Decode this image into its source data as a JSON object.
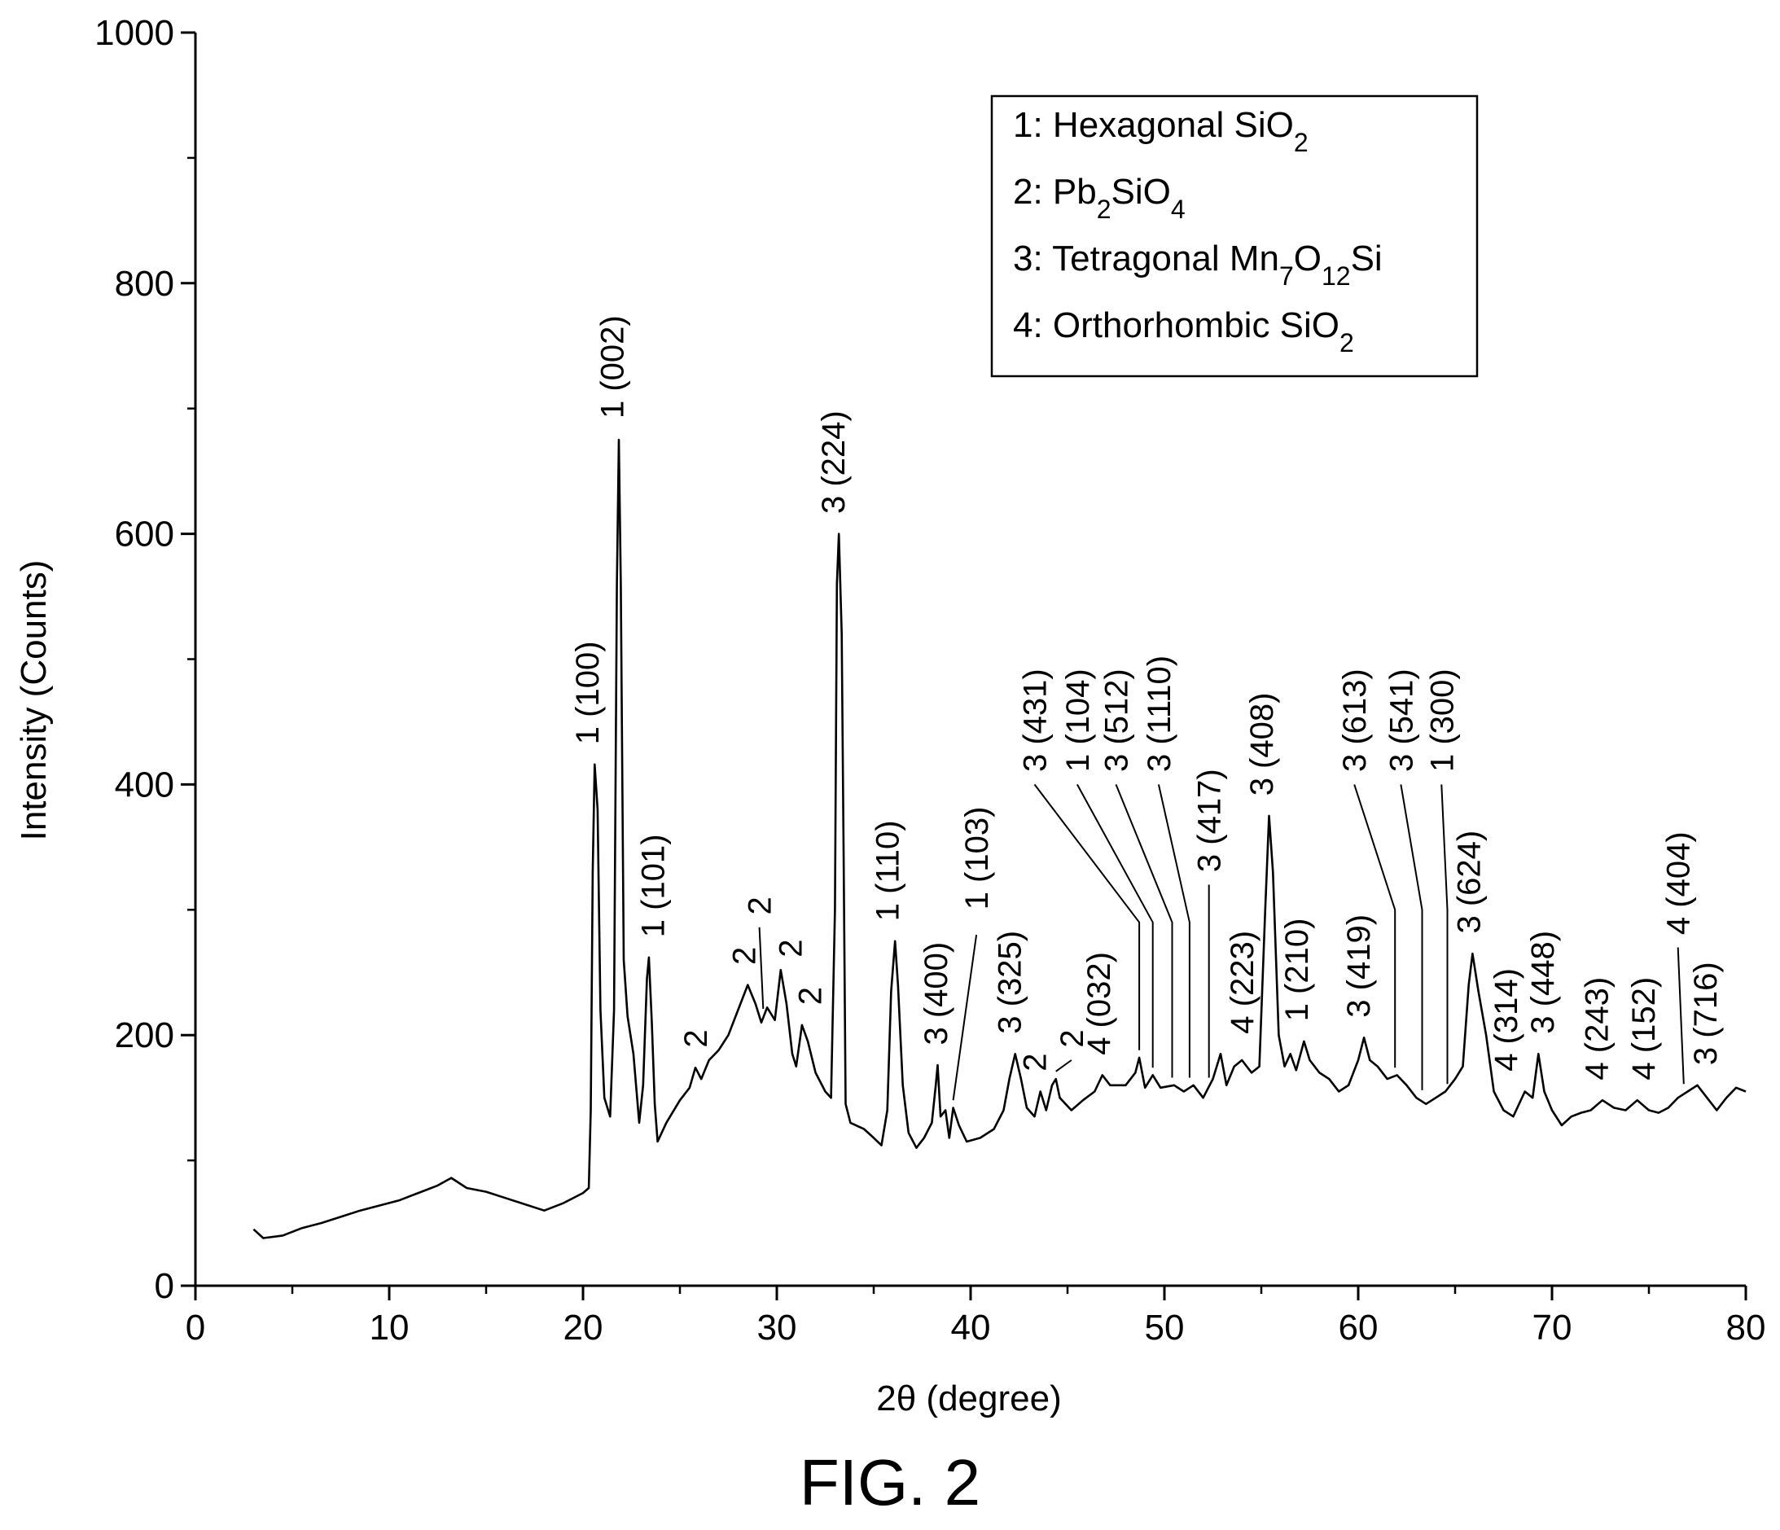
{
  "figure": {
    "caption": "FIG. 2"
  },
  "legend": {
    "entries": [
      {
        "prefix": "1: Hexagonal SiO",
        "sub": "2",
        "suffix": ""
      },
      {
        "prefix": "2: Pb",
        "sub": "2",
        "mid": "SiO",
        "sub2": "4",
        "suffix": ""
      },
      {
        "prefix": "3: Tetragonal Mn",
        "sub": "7",
        "mid": "O",
        "sub2": "12",
        "suffix": "Si"
      },
      {
        "prefix": "4: Orthorhombic SiO",
        "sub": "2",
        "suffix": ""
      }
    ]
  },
  "chart_data": {
    "type": "line",
    "title": "",
    "xlabel": "2θ (degree)",
    "ylabel": "Intensity (Counts)",
    "xlim": [
      0,
      80
    ],
    "ylim": [
      0,
      1000
    ],
    "xticks": [
      0,
      10,
      20,
      30,
      40,
      50,
      60,
      70,
      80
    ],
    "yticks": [
      0,
      200,
      400,
      600,
      800,
      1000
    ],
    "grid": false,
    "legend_position": "top-right",
    "series": [
      {
        "points": [
          [
            3.0,
            45
          ],
          [
            3.5,
            38
          ],
          [
            4.5,
            40
          ],
          [
            5.5,
            46
          ],
          [
            6.5,
            50
          ],
          [
            7.5,
            55
          ],
          [
            8.5,
            60
          ],
          [
            9.5,
            64
          ],
          [
            10.5,
            68
          ],
          [
            11.5,
            74
          ],
          [
            12.5,
            80
          ],
          [
            13.2,
            86
          ],
          [
            14.0,
            78
          ],
          [
            15.0,
            75
          ],
          [
            16.0,
            70
          ],
          [
            17.0,
            65
          ],
          [
            18.0,
            60
          ],
          [
            19.0,
            66
          ],
          [
            20.0,
            74
          ],
          [
            20.3,
            78
          ],
          [
            20.4,
            140
          ],
          [
            20.5,
            330
          ],
          [
            20.6,
            416
          ],
          [
            20.75,
            380
          ],
          [
            20.9,
            220
          ],
          [
            21.1,
            150
          ],
          [
            21.4,
            135
          ],
          [
            21.6,
            220
          ],
          [
            21.75,
            560
          ],
          [
            21.85,
            675
          ],
          [
            21.95,
            560
          ],
          [
            22.1,
            260
          ],
          [
            22.3,
            215
          ],
          [
            22.6,
            185
          ],
          [
            22.9,
            130
          ],
          [
            23.1,
            160
          ],
          [
            23.3,
            245
          ],
          [
            23.4,
            262
          ],
          [
            23.55,
            210
          ],
          [
            23.7,
            145
          ],
          [
            23.85,
            115
          ],
          [
            24.3,
            130
          ],
          [
            25.0,
            148
          ],
          [
            25.5,
            158
          ],
          [
            25.8,
            174
          ],
          [
            26.1,
            165
          ],
          [
            26.5,
            180
          ],
          [
            27.0,
            188
          ],
          [
            27.5,
            200
          ],
          [
            28.0,
            220
          ],
          [
            28.5,
            240
          ],
          [
            28.9,
            225
          ],
          [
            29.2,
            210
          ],
          [
            29.5,
            222
          ],
          [
            29.9,
            212
          ],
          [
            30.2,
            252
          ],
          [
            30.5,
            225
          ],
          [
            30.8,
            185
          ],
          [
            31.0,
            175
          ],
          [
            31.3,
            208
          ],
          [
            31.6,
            195
          ],
          [
            32.0,
            170
          ],
          [
            32.5,
            155
          ],
          [
            32.8,
            150
          ],
          [
            33.0,
            300
          ],
          [
            33.1,
            560
          ],
          [
            33.2,
            600
          ],
          [
            33.35,
            520
          ],
          [
            33.45,
            340
          ],
          [
            33.55,
            145
          ],
          [
            33.8,
            130
          ],
          [
            34.5,
            125
          ],
          [
            35.0,
            118
          ],
          [
            35.4,
            112
          ],
          [
            35.7,
            140
          ],
          [
            35.9,
            235
          ],
          [
            36.1,
            275
          ],
          [
            36.25,
            240
          ],
          [
            36.5,
            160
          ],
          [
            36.8,
            122
          ],
          [
            37.2,
            110
          ],
          [
            37.6,
            118
          ],
          [
            38.0,
            130
          ],
          [
            38.2,
            160
          ],
          [
            38.3,
            176
          ],
          [
            38.45,
            135
          ],
          [
            38.7,
            140
          ],
          [
            38.9,
            118
          ],
          [
            39.1,
            142
          ],
          [
            39.4,
            128
          ],
          [
            39.8,
            115
          ],
          [
            40.5,
            118
          ],
          [
            41.2,
            125
          ],
          [
            41.7,
            140
          ],
          [
            42.0,
            165
          ],
          [
            42.3,
            185
          ],
          [
            42.6,
            165
          ],
          [
            42.9,
            142
          ],
          [
            43.3,
            135
          ],
          [
            43.6,
            155
          ],
          [
            43.9,
            140
          ],
          [
            44.2,
            160
          ],
          [
            44.4,
            165
          ],
          [
            44.6,
            150
          ],
          [
            45.2,
            140
          ],
          [
            45.8,
            148
          ],
          [
            46.4,
            155
          ],
          [
            46.8,
            168
          ],
          [
            47.2,
            160
          ],
          [
            48.0,
            160
          ],
          [
            48.5,
            170
          ],
          [
            48.7,
            182
          ],
          [
            49.0,
            158
          ],
          [
            49.4,
            168
          ],
          [
            49.8,
            158
          ],
          [
            50.5,
            160
          ],
          [
            51.0,
            155
          ],
          [
            51.5,
            160
          ],
          [
            52.0,
            150
          ],
          [
            52.5,
            165
          ],
          [
            52.9,
            185
          ],
          [
            53.2,
            160
          ],
          [
            53.6,
            175
          ],
          [
            54.0,
            180
          ],
          [
            54.5,
            170
          ],
          [
            54.9,
            175
          ],
          [
            55.2,
            300
          ],
          [
            55.4,
            375
          ],
          [
            55.6,
            330
          ],
          [
            55.9,
            200
          ],
          [
            56.2,
            175
          ],
          [
            56.5,
            185
          ],
          [
            56.8,
            172
          ],
          [
            57.2,
            195
          ],
          [
            57.5,
            180
          ],
          [
            58.0,
            170
          ],
          [
            58.5,
            165
          ],
          [
            59.0,
            155
          ],
          [
            59.5,
            160
          ],
          [
            60.0,
            180
          ],
          [
            60.3,
            198
          ],
          [
            60.6,
            180
          ],
          [
            61.0,
            175
          ],
          [
            61.5,
            165
          ],
          [
            62.0,
            168
          ],
          [
            62.5,
            160
          ],
          [
            63.0,
            150
          ],
          [
            63.5,
            145
          ],
          [
            64.0,
            150
          ],
          [
            64.5,
            155
          ],
          [
            65.0,
            165
          ],
          [
            65.4,
            175
          ],
          [
            65.7,
            240
          ],
          [
            65.9,
            265
          ],
          [
            66.2,
            235
          ],
          [
            66.6,
            200
          ],
          [
            67.0,
            155
          ],
          [
            67.5,
            140
          ],
          [
            68.0,
            135
          ],
          [
            68.6,
            155
          ],
          [
            69.0,
            150
          ],
          [
            69.3,
            185
          ],
          [
            69.6,
            155
          ],
          [
            70.0,
            140
          ],
          [
            70.5,
            128
          ],
          [
            71.0,
            135
          ],
          [
            71.5,
            138
          ],
          [
            72.0,
            140
          ],
          [
            72.6,
            148
          ],
          [
            73.2,
            142
          ],
          [
            73.8,
            140
          ],
          [
            74.4,
            148
          ],
          [
            75.0,
            140
          ],
          [
            75.5,
            138
          ],
          [
            76.0,
            142
          ],
          [
            76.5,
            150
          ],
          [
            77.0,
            155
          ],
          [
            77.5,
            160
          ],
          [
            78.0,
            150
          ],
          [
            78.5,
            140
          ],
          [
            79.0,
            150
          ],
          [
            79.5,
            158
          ],
          [
            80.0,
            155
          ]
        ]
      }
    ],
    "peak_labels": [
      {
        "text": "1 (100)",
        "x": 20.6,
        "y": 416,
        "lx": 20.2,
        "ly": 432
      },
      {
        "text": "1 (002)",
        "x": 21.85,
        "y": 675,
        "lx": 21.5,
        "ly": 692
      },
      {
        "text": "1 (101)",
        "x": 23.4,
        "y": 262,
        "lx": 23.6,
        "ly": 278
      },
      {
        "text": "2",
        "x": 25.8,
        "y": 174,
        "lx": 25.8,
        "ly": 190
      },
      {
        "text": "2",
        "x": 28.5,
        "y": 240,
        "lx": 28.3,
        "ly": 256
      },
      {
        "text": "2",
        "x": 29.3,
        "y": 215,
        "lx": 29.1,
        "ly": 296,
        "leader": true,
        "lead_top": 286
      },
      {
        "text": "2",
        "x": 30.2,
        "y": 252,
        "lx": 30.7,
        "ly": 262
      },
      {
        "text": "2",
        "x": 31.3,
        "y": 208,
        "lx": 31.7,
        "ly": 224
      },
      {
        "text": "3 (224)",
        "x": 33.2,
        "y": 600,
        "lx": 32.9,
        "ly": 616
      },
      {
        "text": "1 (110)",
        "x": 36.1,
        "y": 275,
        "lx": 35.7,
        "ly": 291
      },
      {
        "text": "3 (400)",
        "x": 38.3,
        "y": 176,
        "lx": 38.2,
        "ly": 192
      },
      {
        "text": "1 (103)",
        "x": 39.1,
        "y": 142,
        "lx": 40.3,
        "ly": 300,
        "leader": true,
        "lead_top": 280
      },
      {
        "text": "3 (325)",
        "x": 42.3,
        "y": 185,
        "lx": 42.0,
        "ly": 201
      },
      {
        "text": "2",
        "x": 43.6,
        "y": 155,
        "lx": 43.3,
        "ly": 171
      },
      {
        "text": "2",
        "x": 44.4,
        "y": 165,
        "lx": 45.2,
        "ly": 190,
        "leader": true,
        "lead_top": 180
      },
      {
        "text": "4 (032)",
        "x": 46.8,
        "y": 168,
        "lx": 46.6,
        "ly": 184
      },
      {
        "text": "3 (431)",
        "x": 48.7,
        "y": 182,
        "lx": 43.3,
        "ly": 410,
        "leader": true,
        "lead_top": 400,
        "bend": 290
      },
      {
        "text": "1 (104)",
        "x": 49.4,
        "y": 168,
        "lx": 45.5,
        "ly": 410,
        "leader": true,
        "lead_top": 400,
        "bend": 290
      },
      {
        "text": "3 (512)",
        "x": 50.4,
        "y": 160,
        "lx": 47.5,
        "ly": 410,
        "leader": true,
        "lead_top": 400,
        "bend": 290
      },
      {
        "text": "3 (1110)",
        "x": 51.3,
        "y": 160,
        "lx": 49.7,
        "ly": 410,
        "leader": true,
        "lead_top": 400,
        "bend": 290
      },
      {
        "text": "3 (417)",
        "x": 52.3,
        "y": 160,
        "lx": 52.3,
        "ly": 330,
        "leader": true,
        "lead_top": 320
      },
      {
        "text": "4 (223)",
        "x": 52.9,
        "y": 185,
        "lx": 54.0,
        "ly": 201
      },
      {
        "text": "3 (408)",
        "x": 55.4,
        "y": 375,
        "lx": 55.0,
        "ly": 391
      },
      {
        "text": "1 (210)",
        "x": 57.2,
        "y": 195,
        "lx": 56.8,
        "ly": 211
      },
      {
        "text": "3 (419)",
        "x": 60.3,
        "y": 198,
        "lx": 60.0,
        "ly": 214
      },
      {
        "text": "3 (613)",
        "x": 61.9,
        "y": 168,
        "lx": 59.8,
        "ly": 410,
        "leader": true,
        "lead_top": 400,
        "bend": 300
      },
      {
        "text": "3 (541)",
        "x": 63.3,
        "y": 150,
        "lx": 62.2,
        "ly": 410,
        "leader": true,
        "lead_top": 400,
        "bend": 300
      },
      {
        "text": "1 (300)",
        "x": 64.6,
        "y": 155,
        "lx": 64.3,
        "ly": 410,
        "leader": true,
        "lead_top": 400,
        "bend": 300
      },
      {
        "text": "3 (624)",
        "x": 65.9,
        "y": 265,
        "lx": 65.7,
        "ly": 281
      },
      {
        "text": "4 (314)",
        "x": 68.6,
        "y": 155,
        "lx": 67.6,
        "ly": 171
      },
      {
        "text": "3 (448)",
        "x": 69.3,
        "y": 185,
        "lx": 69.5,
        "ly": 201
      },
      {
        "text": "4 (243)",
        "x": 72.6,
        "y": 148,
        "lx": 72.3,
        "ly": 164
      },
      {
        "text": "4 (152)",
        "x": 74.4,
        "y": 148,
        "lx": 74.7,
        "ly": 164
      },
      {
        "text": "4 (404)",
        "x": 76.8,
        "y": 155,
        "lx": 76.5,
        "ly": 280,
        "leader": true,
        "lead_top": 270
      },
      {
        "text": "3 (716)",
        "x": 77.5,
        "y": 160,
        "lx": 77.9,
        "ly": 176
      }
    ]
  }
}
